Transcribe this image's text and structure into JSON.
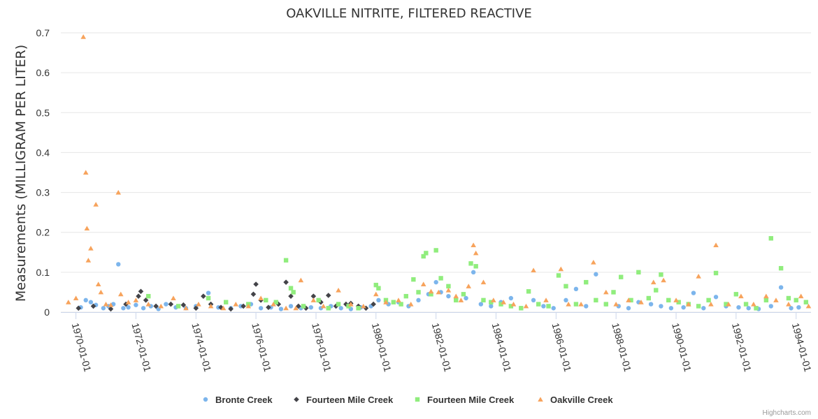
{
  "chart_data": {
    "type": "scatter",
    "title": "OAKVILLE NITRITE, FILTERED REACTIVE",
    "ylabel": "Measurements (MILLIGRAM PER LITER)",
    "xlabel": "",
    "ylim": [
      0,
      0.7
    ],
    "yticks": [
      "0",
      "0.1",
      "0.2",
      "0.3",
      "0.4",
      "0.5",
      "0.6",
      "0.7"
    ],
    "xlim": [
      "1969-07-01",
      "1994-07-01"
    ],
    "xticks": [
      "1970-01-01",
      "1972-01-01",
      "1974-01-01",
      "1976-01-01",
      "1978-01-01",
      "1980-01-01",
      "1982-01-01",
      "1984-01-01",
      "1986-01-01",
      "1988-01-01",
      "1990-01-01",
      "1992-01-01",
      "1994-01-01"
    ],
    "grid": true,
    "legend_position": "bottom-center",
    "credits": "Highcharts.com",
    "series": [
      {
        "name": "Bronte Creek",
        "color": "#7cb5ec",
        "marker": "circle",
        "points": [
          [
            "1970-03-01",
            0.012
          ],
          [
            "1970-05-01",
            0.03
          ],
          [
            "1970-07-01",
            0.025
          ],
          [
            "1970-09-01",
            0.018
          ],
          [
            "1970-12-01",
            0.01
          ],
          [
            "1971-02-01",
            0.015
          ],
          [
            "1971-04-01",
            0.02
          ],
          [
            "1971-06-01",
            0.12
          ],
          [
            "1971-08-01",
            0.01
          ],
          [
            "1971-10-01",
            0.012
          ],
          [
            "1972-01-01",
            0.018
          ],
          [
            "1972-04-01",
            0.01
          ],
          [
            "1972-07-01",
            0.015
          ],
          [
            "1972-10-01",
            0.008
          ],
          [
            "1973-01-01",
            0.02
          ],
          [
            "1973-05-01",
            0.012
          ],
          [
            "1973-09-01",
            0.01
          ],
          [
            "1974-01-01",
            0.015
          ],
          [
            "1974-06-01",
            0.048
          ],
          [
            "1974-10-01",
            0.012
          ],
          [
            "1975-03-01",
            0.01
          ],
          [
            "1975-07-01",
            0.015
          ],
          [
            "1975-11-01",
            0.02
          ],
          [
            "1976-03-01",
            0.01
          ],
          [
            "1976-07-01",
            0.012
          ],
          [
            "1976-11-01",
            0.008
          ],
          [
            "1977-03-01",
            0.015
          ],
          [
            "1977-07-01",
            0.01
          ],
          [
            "1977-11-01",
            0.012
          ],
          [
            "1978-03-01",
            0.01
          ],
          [
            "1978-07-01",
            0.015
          ],
          [
            "1978-11-01",
            0.01
          ],
          [
            "1979-03-01",
            0.008
          ],
          [
            "1979-07-01",
            0.012
          ],
          [
            "1979-11-01",
            0.015
          ],
          [
            "1980-02-01",
            0.03
          ],
          [
            "1980-06-01",
            0.02
          ],
          [
            "1980-10-01",
            0.025
          ],
          [
            "1981-02-01",
            0.015
          ],
          [
            "1981-06-01",
            0.03
          ],
          [
            "1981-10-01",
            0.045
          ],
          [
            "1982-01-01",
            0.075
          ],
          [
            "1982-03-01",
            0.05
          ],
          [
            "1982-06-01",
            0.04
          ],
          [
            "1982-09-01",
            0.03
          ],
          [
            "1983-01-01",
            0.035
          ],
          [
            "1983-04-01",
            0.1
          ],
          [
            "1983-07-01",
            0.02
          ],
          [
            "1983-11-01",
            0.015
          ],
          [
            "1984-03-01",
            0.025
          ],
          [
            "1984-07-01",
            0.035
          ],
          [
            "1984-11-01",
            0.01
          ],
          [
            "1985-04-01",
            0.03
          ],
          [
            "1985-08-01",
            0.015
          ],
          [
            "1985-12-01",
            0.01
          ],
          [
            "1986-05-01",
            0.03
          ],
          [
            "1986-09-01",
            0.058
          ],
          [
            "1987-01-01",
            0.015
          ],
          [
            "1987-05-01",
            0.095
          ],
          [
            "1987-09-01",
            0.02
          ],
          [
            "1988-02-01",
            0.015
          ],
          [
            "1988-06-01",
            0.01
          ],
          [
            "1988-10-01",
            0.025
          ],
          [
            "1989-03-01",
            0.02
          ],
          [
            "1989-07-01",
            0.015
          ],
          [
            "1989-11-01",
            0.01
          ],
          [
            "1990-04-01",
            0.012
          ],
          [
            "1990-08-01",
            0.048
          ],
          [
            "1990-12-01",
            0.01
          ],
          [
            "1991-05-01",
            0.038
          ],
          [
            "1991-09-01",
            0.015
          ],
          [
            "1992-02-01",
            0.012
          ],
          [
            "1992-06-01",
            0.01
          ],
          [
            "1992-10-01",
            0.008
          ],
          [
            "1993-03-01",
            0.015
          ],
          [
            "1993-07-01",
            0.062
          ],
          [
            "1993-11-01",
            0.01
          ],
          [
            "1994-02-01",
            0.012
          ]
        ]
      },
      {
        "name": "Fourteen Mile Creek",
        "color": "#434348",
        "marker": "diamond",
        "points": [
          [
            "1970-02-01",
            0.01
          ],
          [
            "1970-08-01",
            0.015
          ],
          [
            "1971-03-01",
            0.008
          ],
          [
            "1971-09-01",
            0.02
          ],
          [
            "1972-02-01",
            0.04
          ],
          [
            "1972-03-01",
            0.052
          ],
          [
            "1972-05-01",
            0.03
          ],
          [
            "1972-09-01",
            0.015
          ],
          [
            "1973-03-01",
            0.02
          ],
          [
            "1973-08-01",
            0.018
          ],
          [
            "1974-01-01",
            0.01
          ],
          [
            "1974-04-01",
            0.04
          ],
          [
            "1974-07-01",
            0.02
          ],
          [
            "1974-11-01",
            0.012
          ],
          [
            "1975-03-01",
            0.008
          ],
          [
            "1975-08-01",
            0.015
          ],
          [
            "1975-12-01",
            0.045
          ],
          [
            "1976-01-01",
            0.07
          ],
          [
            "1976-03-01",
            0.03
          ],
          [
            "1976-06-01",
            0.012
          ],
          [
            "1976-10-01",
            0.02
          ],
          [
            "1977-01-01",
            0.075
          ],
          [
            "1977-03-01",
            0.04
          ],
          [
            "1977-06-01",
            0.015
          ],
          [
            "1977-09-01",
            0.01
          ],
          [
            "1977-12-01",
            0.04
          ],
          [
            "1978-03-01",
            0.025
          ],
          [
            "1978-06-01",
            0.042
          ],
          [
            "1978-09-01",
            0.015
          ],
          [
            "1979-01-01",
            0.02
          ],
          [
            "1979-03-01",
            0.022
          ],
          [
            "1979-06-01",
            0.015
          ],
          [
            "1979-09-01",
            0.01
          ],
          [
            "1979-12-01",
            0.02
          ]
        ]
      },
      {
        "name": "Fourteen Mile Creek",
        "color": "#90ed7d",
        "marker": "square",
        "points": [
          [
            "1972-06-01",
            0.04
          ],
          [
            "1973-06-01",
            0.015
          ],
          [
            "1974-06-01",
            0.035
          ],
          [
            "1975-01-01",
            0.025
          ],
          [
            "1975-10-01",
            0.02
          ],
          [
            "1976-05-01",
            0.03
          ],
          [
            "1976-09-01",
            0.025
          ],
          [
            "1977-01-01",
            0.13
          ],
          [
            "1977-03-01",
            0.06
          ],
          [
            "1977-04-01",
            0.05
          ],
          [
            "1977-08-01",
            0.015
          ],
          [
            "1978-02-01",
            0.03
          ],
          [
            "1978-06-01",
            0.01
          ],
          [
            "1978-10-01",
            0.02
          ],
          [
            "1979-02-01",
            0.015
          ],
          [
            "1979-06-01",
            0.01
          ],
          [
            "1980-01-01",
            0.068
          ],
          [
            "1980-02-01",
            0.06
          ],
          [
            "1980-05-01",
            0.03
          ],
          [
            "1980-08-01",
            0.025
          ],
          [
            "1980-11-01",
            0.02
          ],
          [
            "1981-01-01",
            0.04
          ],
          [
            "1981-04-01",
            0.082
          ],
          [
            "1981-06-01",
            0.05
          ],
          [
            "1981-08-01",
            0.14
          ],
          [
            "1981-09-01",
            0.148
          ],
          [
            "1981-11-01",
            0.045
          ],
          [
            "1982-01-01",
            0.155
          ],
          [
            "1982-03-01",
            0.085
          ],
          [
            "1982-06-01",
            0.065
          ],
          [
            "1982-09-01",
            0.03
          ],
          [
            "1982-12-01",
            0.045
          ],
          [
            "1983-03-01",
            0.122
          ],
          [
            "1983-05-01",
            0.115
          ],
          [
            "1983-08-01",
            0.03
          ],
          [
            "1983-11-01",
            0.025
          ],
          [
            "1984-03-01",
            0.02
          ],
          [
            "1984-07-01",
            0.015
          ],
          [
            "1984-11-01",
            0.01
          ],
          [
            "1985-02-01",
            0.052
          ],
          [
            "1985-06-01",
            0.02
          ],
          [
            "1985-10-01",
            0.015
          ],
          [
            "1986-02-01",
            0.092
          ],
          [
            "1986-05-01",
            0.065
          ],
          [
            "1986-09-01",
            0.02
          ],
          [
            "1987-01-01",
            0.075
          ],
          [
            "1987-05-01",
            0.03
          ],
          [
            "1987-09-01",
            0.02
          ],
          [
            "1987-12-01",
            0.05
          ],
          [
            "1988-03-01",
            0.088
          ],
          [
            "1988-07-01",
            0.03
          ],
          [
            "1988-10-01",
            0.1
          ],
          [
            "1989-02-01",
            0.035
          ],
          [
            "1989-05-01",
            0.055
          ],
          [
            "1989-07-01",
            0.094
          ],
          [
            "1989-10-01",
            0.03
          ],
          [
            "1990-02-01",
            0.025
          ],
          [
            "1990-06-01",
            0.02
          ],
          [
            "1990-10-01",
            0.015
          ],
          [
            "1991-02-01",
            0.03
          ],
          [
            "1991-05-01",
            0.098
          ],
          [
            "1991-09-01",
            0.02
          ],
          [
            "1992-01-01",
            0.045
          ],
          [
            "1992-05-01",
            0.02
          ],
          [
            "1992-09-01",
            0.01
          ],
          [
            "1993-01-01",
            0.03
          ],
          [
            "1993-03-01",
            0.185
          ],
          [
            "1993-07-01",
            0.11
          ],
          [
            "1993-10-01",
            0.035
          ],
          [
            "1994-01-01",
            0.03
          ],
          [
            "1994-05-01",
            0.025
          ]
        ]
      },
      {
        "name": "Oakville Creek",
        "color": "#f7a35c",
        "marker": "triangle",
        "points": [
          [
            "1969-10-01",
            0.025
          ],
          [
            "1970-01-01",
            0.035
          ],
          [
            "1970-04-01",
            0.69
          ],
          [
            "1970-05-01",
            0.35
          ],
          [
            "1970-05-15",
            0.21
          ],
          [
            "1970-06-01",
            0.13
          ],
          [
            "1970-07-01",
            0.16
          ],
          [
            "1970-09-01",
            0.27
          ],
          [
            "1970-10-01",
            0.07
          ],
          [
            "1970-11-01",
            0.05
          ],
          [
            "1971-01-01",
            0.02
          ],
          [
            "1971-03-01",
            0.018
          ],
          [
            "1971-06-01",
            0.3
          ],
          [
            "1971-07-01",
            0.045
          ],
          [
            "1971-10-01",
            0.025
          ],
          [
            "1972-01-01",
            0.03
          ],
          [
            "1972-06-01",
            0.02
          ],
          [
            "1972-11-01",
            0.015
          ],
          [
            "1973-04-01",
            0.035
          ],
          [
            "1973-09-01",
            0.01
          ],
          [
            "1974-02-01",
            0.02
          ],
          [
            "1974-07-01",
            0.015
          ],
          [
            "1974-12-01",
            0.01
          ],
          [
            "1975-05-01",
            0.02
          ],
          [
            "1975-10-01",
            0.015
          ],
          [
            "1976-03-01",
            0.035
          ],
          [
            "1976-08-01",
            0.02
          ],
          [
            "1977-01-01",
            0.01
          ],
          [
            "1977-05-01",
            0.01
          ],
          [
            "1977-07-01",
            0.08
          ],
          [
            "1977-12-01",
            0.03
          ],
          [
            "1978-04-01",
            0.015
          ],
          [
            "1978-10-01",
            0.055
          ],
          [
            "1979-03-01",
            0.02
          ],
          [
            "1979-08-01",
            0.015
          ],
          [
            "1980-01-01",
            0.045
          ],
          [
            "1980-05-01",
            0.025
          ],
          [
            "1980-10-01",
            0.03
          ],
          [
            "1981-03-01",
            0.02
          ],
          [
            "1981-08-01",
            0.07
          ],
          [
            "1981-11-01",
            0.052
          ],
          [
            "1982-02-01",
            0.05
          ],
          [
            "1982-06-01",
            0.055
          ],
          [
            "1982-09-01",
            0.04
          ],
          [
            "1982-11-01",
            0.03
          ],
          [
            "1983-02-01",
            0.065
          ],
          [
            "1983-04-01",
            0.168
          ],
          [
            "1983-05-01",
            0.148
          ],
          [
            "1983-08-01",
            0.075
          ],
          [
            "1983-12-01",
            0.03
          ],
          [
            "1984-04-01",
            0.025
          ],
          [
            "1984-08-01",
            0.02
          ],
          [
            "1985-01-01",
            0.015
          ],
          [
            "1985-04-01",
            0.105
          ],
          [
            "1985-09-01",
            0.03
          ],
          [
            "1986-03-01",
            0.108
          ],
          [
            "1986-06-01",
            0.02
          ],
          [
            "1986-11-01",
            0.02
          ],
          [
            "1987-04-01",
            0.125
          ],
          [
            "1987-09-01",
            0.05
          ],
          [
            "1988-01-01",
            0.02
          ],
          [
            "1988-06-01",
            0.03
          ],
          [
            "1988-11-01",
            0.025
          ],
          [
            "1989-04-01",
            0.075
          ],
          [
            "1989-08-01",
            0.08
          ],
          [
            "1990-01-01",
            0.03
          ],
          [
            "1990-06-01",
            0.02
          ],
          [
            "1990-10-01",
            0.09
          ],
          [
            "1991-03-01",
            0.02
          ],
          [
            "1991-05-01",
            0.168
          ],
          [
            "1991-10-01",
            0.02
          ],
          [
            "1992-03-01",
            0.04
          ],
          [
            "1992-08-01",
            0.02
          ],
          [
            "1993-01-01",
            0.04
          ],
          [
            "1993-05-01",
            0.03
          ],
          [
            "1993-10-01",
            0.02
          ],
          [
            "1994-03-01",
            0.04
          ],
          [
            "1994-06-01",
            0.015
          ]
        ]
      }
    ]
  }
}
